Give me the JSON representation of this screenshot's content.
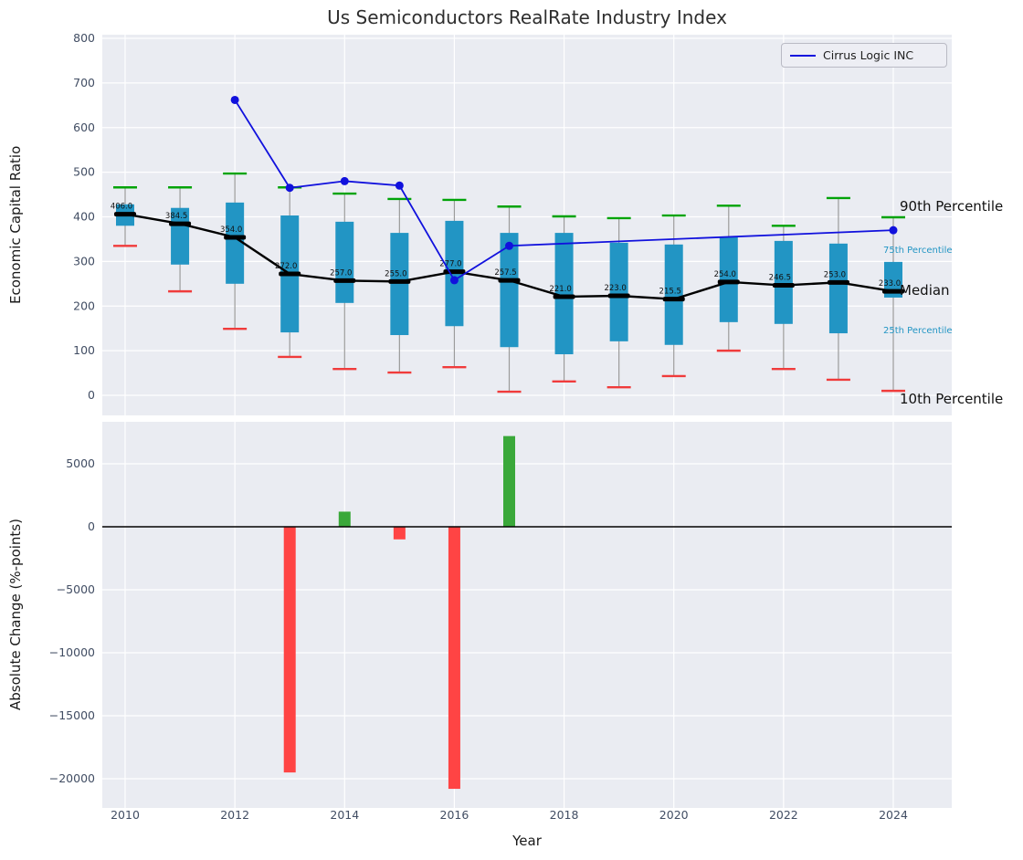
{
  "title": "Us Semiconductors RealRate Industry Index",
  "legend": {
    "series_label": "Cirrus Logic INC"
  },
  "top_chart": {
    "ylabel": "Economic Capital Ratio",
    "annotations": [
      {
        "label": "90th Percentile",
        "size": "large",
        "color": "#111111",
        "y_value": 421
      },
      {
        "label": "75th Percentile",
        "size": "small",
        "color": "#2295c4",
        "y_value": 321
      },
      {
        "label": "Median",
        "size": "large",
        "color": "#111111",
        "y_value": 233
      },
      {
        "label": "25th Percentile",
        "size": "small",
        "color": "#2295c4",
        "y_value": 141
      },
      {
        "label": "10th Percentile",
        "size": "large",
        "color": "#111111",
        "y_value": -10
      }
    ]
  },
  "bottom_chart": {
    "ylabel": "Absolute Change (%-points)",
    "xlabel": "Year"
  },
  "colors": {
    "panel_bg": "#eaecf2",
    "grid": "#ffffff",
    "box": "#2295c4",
    "whisker": "#9b9b9b",
    "p90_cap": "#00a308",
    "p10_cap": "#f03b3b",
    "median": "#000000",
    "series_line": "#1111dd",
    "bar_positive": "#3aa83a",
    "bar_negative": "#ff4444",
    "tick": "#414d63",
    "zero_line": "#000000"
  },
  "chart_data": [
    {
      "type": "boxplot",
      "panel": "top",
      "title": "Us Semiconductors RealRate Industry Index",
      "ylabel": "Economic Capital Ratio",
      "ylim": [
        0,
        800
      ],
      "yticks": [
        0,
        100,
        200,
        300,
        400,
        500,
        600,
        700,
        800
      ],
      "grid": true,
      "legend_position": "upper right",
      "years": [
        2010,
        2011,
        2012,
        2013,
        2014,
        2015,
        2016,
        2017,
        2018,
        2019,
        2020,
        2021,
        2022,
        2023,
        2024
      ],
      "p90": [
        466,
        466,
        497,
        466,
        452,
        440,
        438,
        423,
        401,
        397,
        403,
        425,
        380,
        442,
        399
      ],
      "p75": [
        428,
        420,
        432,
        403,
        389,
        364,
        391,
        364,
        364,
        342,
        338,
        354,
        346,
        340,
        299
      ],
      "median": [
        406.0,
        384.5,
        354.0,
        272.0,
        257.0,
        255.0,
        277.0,
        257.5,
        221.0,
        223.0,
        215.5,
        254.0,
        246.5,
        253.0,
        233.0
      ],
      "p25": [
        380,
        293,
        250,
        141,
        207,
        135,
        155,
        108,
        92,
        121,
        113,
        164,
        160,
        139,
        219
      ],
      "p10": [
        335,
        233,
        149,
        86,
        59,
        51,
        63,
        8,
        31,
        18,
        43,
        100,
        59,
        35,
        10
      ],
      "series": [
        {
          "name": "Cirrus Logic INC",
          "points": [
            [
              2012,
              662
            ],
            [
              2013,
              465
            ],
            [
              2014,
              480
            ],
            [
              2015,
              470
            ],
            [
              2016,
              258
            ],
            [
              2017,
              335
            ],
            [
              2024,
              370
            ]
          ]
        }
      ]
    },
    {
      "type": "bar",
      "panel": "bottom",
      "ylabel": "Absolute Change (%-points)",
      "xlabel": "Year",
      "ylim": [
        -22300,
        8300
      ],
      "yticks": [
        5000,
        0,
        -5000,
        -10000,
        -15000,
        -20000
      ],
      "xticks": [
        2010,
        2012,
        2014,
        2016,
        2018,
        2020,
        2022,
        2024
      ],
      "grid": true,
      "years": [
        2010,
        2011,
        2012,
        2013,
        2014,
        2015,
        2016,
        2017,
        2018,
        2019,
        2020,
        2021,
        2022,
        2023,
        2024
      ],
      "values": [
        0,
        0,
        0,
        -19500,
        1200,
        -1000,
        -20800,
        7200,
        0,
        0,
        0,
        0,
        0,
        0,
        0
      ]
    }
  ]
}
